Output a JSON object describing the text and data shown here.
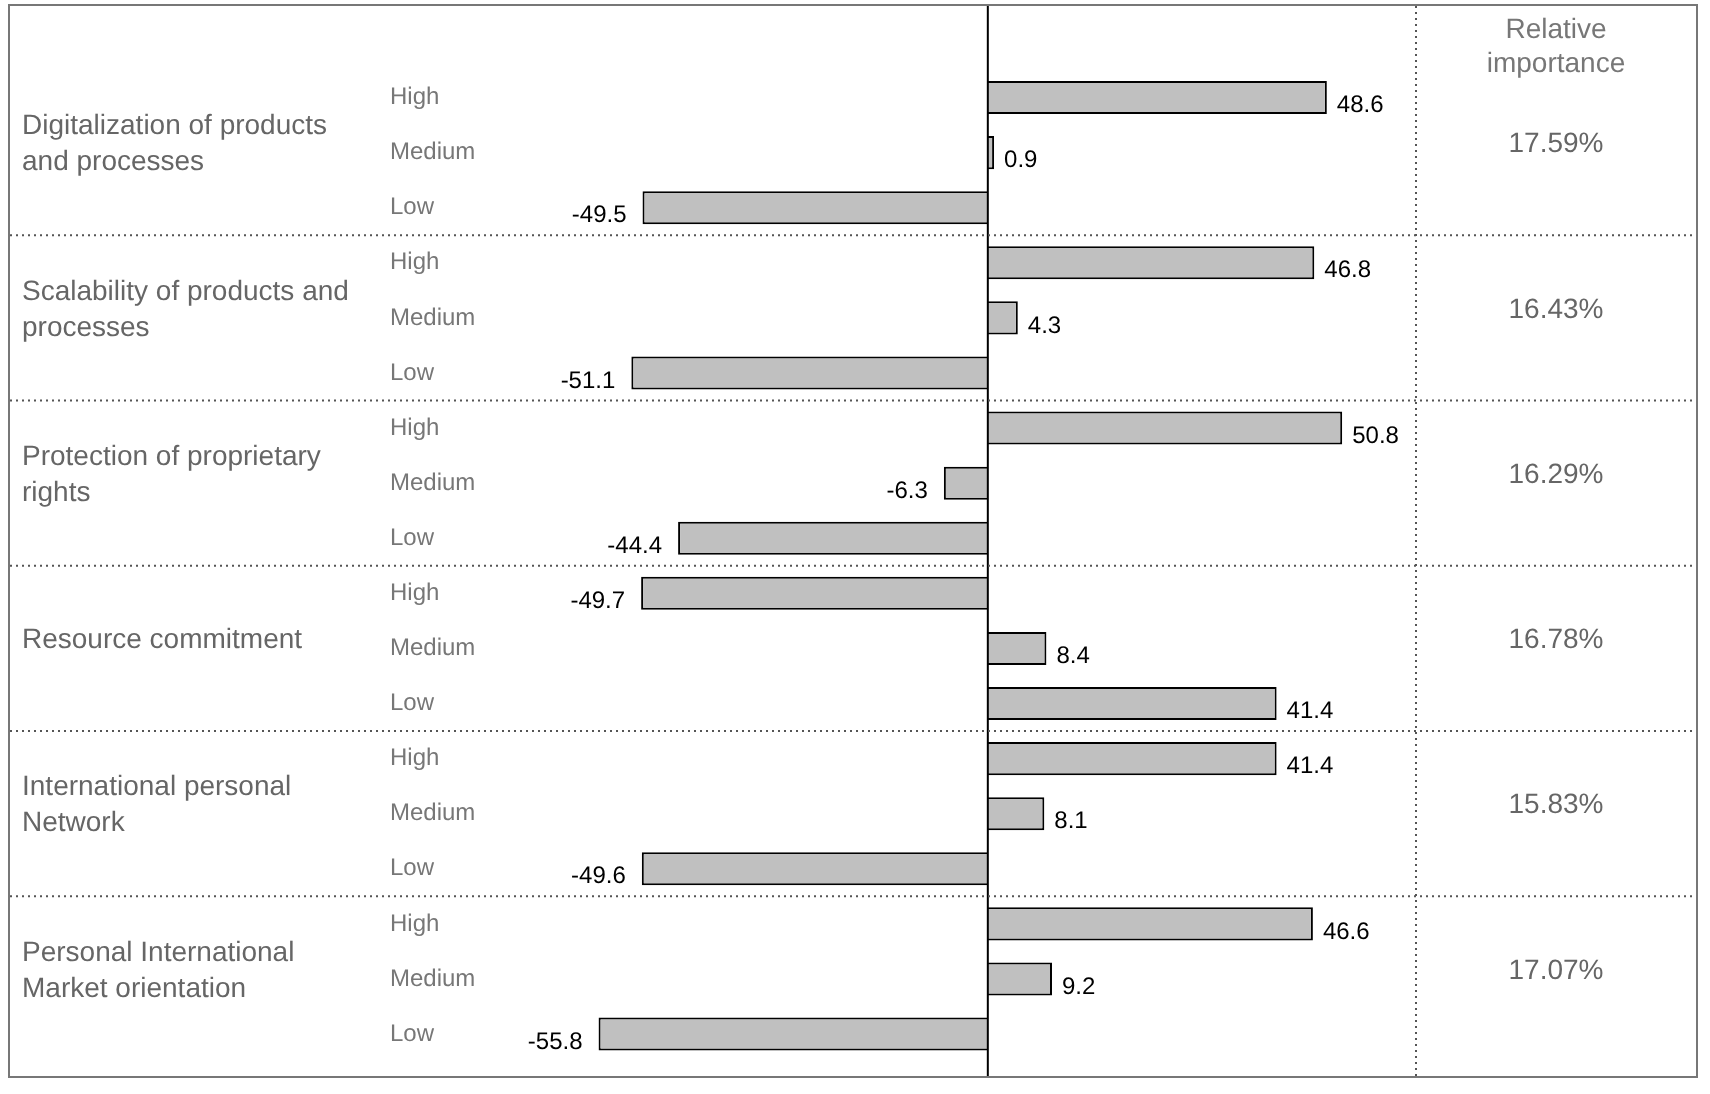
{
  "chart_data": {
    "type": "bar",
    "orientation": "horizontal",
    "categories": [
      "High",
      "Medium",
      "Low",
      "High",
      "Medium",
      "Low",
      "High",
      "Medium",
      "Low",
      "High",
      "Medium",
      "Low",
      "High",
      "Medium",
      "Low",
      "High",
      "Medium",
      "Low"
    ],
    "values": [
      48.6,
      0.9,
      -49.5,
      46.8,
      4.3,
      -51.1,
      50.8,
      -6.3,
      -44.4,
      -49.7,
      8.4,
      41.4,
      41.4,
      8.1,
      -49.6,
      46.6,
      9.2,
      -55.8
    ],
    "color": "#c0c0c0",
    "data_labels": true,
    "annotations": [
      "Relative importance",
      "Digitalization of products and processes",
      "Scalability of products and processes",
      "Protection of proprietary rights",
      "Resource commitment",
      "International personal Network",
      "Personal International Market orientation",
      "17.59%",
      "16.43%",
      "16.29%",
      "16.78%",
      "15.83%",
      "17.07%"
    ]
  }
}
